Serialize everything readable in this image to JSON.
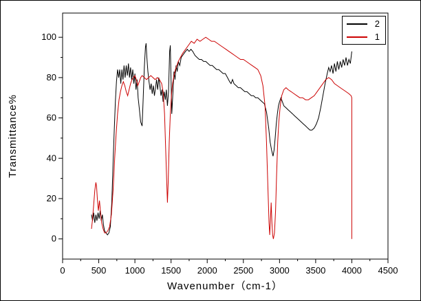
{
  "figure": {
    "background": "#ffffff",
    "border_color": "#000000"
  },
  "chart_data": {
    "type": "line",
    "title": "",
    "xlabel": "Wavenumber（cm-1）",
    "ylabel": "Transmittance%",
    "grid": false,
    "x_axis": {
      "min": 0,
      "max": 4500,
      "major_ticks": [
        0,
        500,
        1000,
        1500,
        2000,
        2500,
        3000,
        3500,
        4000,
        4500
      ],
      "minor_step": 250,
      "display_range": [
        0,
        4500
      ]
    },
    "y_axis": {
      "min": 0,
      "max": 100,
      "major_ticks": [
        0,
        20,
        40,
        60,
        80,
        100
      ],
      "minor_step": 10,
      "display_range": [
        -10,
        112
      ]
    },
    "legend": {
      "position": "top-right",
      "entries": [
        {
          "label": "2",
          "color": "#000000"
        },
        {
          "label": "1",
          "color": "#cc0000"
        }
      ]
    },
    "series": [
      {
        "name": "2",
        "color": "#000000",
        "points": [
          [
            400,
            12
          ],
          [
            415,
            9
          ],
          [
            430,
            13
          ],
          [
            445,
            8
          ],
          [
            460,
            12
          ],
          [
            475,
            9
          ],
          [
            490,
            13
          ],
          [
            505,
            10
          ],
          [
            520,
            14
          ],
          [
            535,
            9
          ],
          [
            550,
            12
          ],
          [
            565,
            7
          ],
          [
            580,
            4
          ],
          [
            600,
            3
          ],
          [
            620,
            2
          ],
          [
            640,
            3
          ],
          [
            660,
            6
          ],
          [
            680,
            18
          ],
          [
            700,
            40
          ],
          [
            715,
            55
          ],
          [
            730,
            68
          ],
          [
            745,
            78
          ],
          [
            760,
            84
          ],
          [
            775,
            80
          ],
          [
            790,
            84
          ],
          [
            805,
            77
          ],
          [
            820,
            84
          ],
          [
            835,
            79
          ],
          [
            850,
            86
          ],
          [
            865,
            80
          ],
          [
            880,
            86
          ],
          [
            895,
            81
          ],
          [
            910,
            87
          ],
          [
            925,
            80
          ],
          [
            940,
            85
          ],
          [
            955,
            79
          ],
          [
            970,
            84
          ],
          [
            985,
            77
          ],
          [
            1000,
            82
          ],
          [
            1015,
            74
          ],
          [
            1030,
            79
          ],
          [
            1045,
            70
          ],
          [
            1060,
            65
          ],
          [
            1080,
            58
          ],
          [
            1100,
            56
          ],
          [
            1115,
            70
          ],
          [
            1130,
            85
          ],
          [
            1145,
            95
          ],
          [
            1155,
            97
          ],
          [
            1165,
            90
          ],
          [
            1180,
            83
          ],
          [
            1195,
            78
          ],
          [
            1210,
            74
          ],
          [
            1225,
            77
          ],
          [
            1240,
            72
          ],
          [
            1255,
            76
          ],
          [
            1270,
            71
          ],
          [
            1285,
            75
          ],
          [
            1300,
            79
          ],
          [
            1315,
            74
          ],
          [
            1330,
            80
          ],
          [
            1345,
            76
          ],
          [
            1360,
            71
          ],
          [
            1375,
            74
          ],
          [
            1390,
            68
          ],
          [
            1405,
            73
          ],
          [
            1420,
            69
          ],
          [
            1435,
            74
          ],
          [
            1450,
            66
          ],
          [
            1465,
            73
          ],
          [
            1480,
            93
          ],
          [
            1490,
            96
          ],
          [
            1500,
            78
          ],
          [
            1510,
            62
          ],
          [
            1525,
            72
          ],
          [
            1540,
            83
          ],
          [
            1555,
            79
          ],
          [
            1570,
            86
          ],
          [
            1585,
            83
          ],
          [
            1600,
            88
          ],
          [
            1620,
            86
          ],
          [
            1640,
            90
          ],
          [
            1660,
            91
          ],
          [
            1680,
            92
          ],
          [
            1700,
            93
          ],
          [
            1725,
            94
          ],
          [
            1750,
            93
          ],
          [
            1775,
            94
          ],
          [
            1800,
            93
          ],
          [
            1830,
            91
          ],
          [
            1860,
            90
          ],
          [
            1890,
            89
          ],
          [
            1920,
            89
          ],
          [
            1950,
            88
          ],
          [
            1980,
            88
          ],
          [
            2010,
            87
          ],
          [
            2040,
            86
          ],
          [
            2070,
            86
          ],
          [
            2100,
            85
          ],
          [
            2130,
            84
          ],
          [
            2160,
            84
          ],
          [
            2190,
            83
          ],
          [
            2220,
            82
          ],
          [
            2250,
            82
          ],
          [
            2280,
            80
          ],
          [
            2310,
            78
          ],
          [
            2330,
            77
          ],
          [
            2350,
            79
          ],
          [
            2370,
            77
          ],
          [
            2400,
            76
          ],
          [
            2430,
            75
          ],
          [
            2460,
            75
          ],
          [
            2490,
            74
          ],
          [
            2520,
            73
          ],
          [
            2550,
            73
          ],
          [
            2580,
            72
          ],
          [
            2610,
            71
          ],
          [
            2640,
            71
          ],
          [
            2670,
            70
          ],
          [
            2700,
            70
          ],
          [
            2730,
            69
          ],
          [
            2760,
            68
          ],
          [
            2790,
            67
          ],
          [
            2820,
            63
          ],
          [
            2850,
            55
          ],
          [
            2870,
            48
          ],
          [
            2890,
            44
          ],
          [
            2910,
            41
          ],
          [
            2925,
            44
          ],
          [
            2940,
            50
          ],
          [
            2955,
            57
          ],
          [
            2970,
            62
          ],
          [
            2985,
            66
          ],
          [
            3000,
            68
          ],
          [
            3020,
            70
          ],
          [
            3040,
            68
          ],
          [
            3060,
            66
          ],
          [
            3090,
            65
          ],
          [
            3120,
            64
          ],
          [
            3150,
            63
          ],
          [
            3180,
            62
          ],
          [
            3210,
            61
          ],
          [
            3240,
            60
          ],
          [
            3270,
            59
          ],
          [
            3300,
            58
          ],
          [
            3330,
            57
          ],
          [
            3360,
            56
          ],
          [
            3390,
            55
          ],
          [
            3420,
            54
          ],
          [
            3450,
            54
          ],
          [
            3480,
            55
          ],
          [
            3510,
            57
          ],
          [
            3540,
            60
          ],
          [
            3570,
            65
          ],
          [
            3600,
            71
          ],
          [
            3630,
            77
          ],
          [
            3660,
            82
          ],
          [
            3680,
            85
          ],
          [
            3700,
            83
          ],
          [
            3720,
            86
          ],
          [
            3740,
            82
          ],
          [
            3760,
            87
          ],
          [
            3780,
            83
          ],
          [
            3800,
            88
          ],
          [
            3820,
            84
          ],
          [
            3840,
            88
          ],
          [
            3860,
            85
          ],
          [
            3880,
            89
          ],
          [
            3900,
            86
          ],
          [
            3920,
            90
          ],
          [
            3940,
            86
          ],
          [
            3960,
            89
          ],
          [
            3980,
            87
          ],
          [
            4000,
            93
          ]
        ]
      },
      {
        "name": "1",
        "color": "#cc0000",
        "points": [
          [
            400,
            5
          ],
          [
            415,
            10
          ],
          [
            430,
            17
          ],
          [
            445,
            24
          ],
          [
            460,
            28
          ],
          [
            470,
            26
          ],
          [
            480,
            20
          ],
          [
            495,
            14
          ],
          [
            510,
            19
          ],
          [
            525,
            13
          ],
          [
            540,
            8
          ],
          [
            560,
            5
          ],
          [
            580,
            3
          ],
          [
            600,
            3
          ],
          [
            625,
            4
          ],
          [
            650,
            6
          ],
          [
            675,
            12
          ],
          [
            700,
            25
          ],
          [
            720,
            40
          ],
          [
            740,
            52
          ],
          [
            760,
            62
          ],
          [
            780,
            69
          ],
          [
            800,
            73
          ],
          [
            820,
            76
          ],
          [
            840,
            78
          ],
          [
            860,
            76
          ],
          [
            880,
            73
          ],
          [
            900,
            71
          ],
          [
            920,
            74
          ],
          [
            940,
            77
          ],
          [
            960,
            79
          ],
          [
            980,
            80
          ],
          [
            1000,
            81
          ],
          [
            1020,
            79
          ],
          [
            1040,
            76
          ],
          [
            1060,
            78
          ],
          [
            1080,
            80
          ],
          [
            1100,
            81
          ],
          [
            1130,
            80
          ],
          [
            1160,
            79
          ],
          [
            1190,
            80
          ],
          [
            1220,
            81
          ],
          [
            1250,
            80
          ],
          [
            1280,
            79
          ],
          [
            1310,
            80
          ],
          [
            1340,
            79
          ],
          [
            1370,
            77
          ],
          [
            1390,
            73
          ],
          [
            1410,
            62
          ],
          [
            1425,
            45
          ],
          [
            1440,
            28
          ],
          [
            1450,
            18
          ],
          [
            1460,
            28
          ],
          [
            1475,
            48
          ],
          [
            1490,
            62
          ],
          [
            1505,
            71
          ],
          [
            1520,
            77
          ],
          [
            1540,
            81
          ],
          [
            1560,
            84
          ],
          [
            1580,
            86
          ],
          [
            1600,
            88
          ],
          [
            1630,
            90
          ],
          [
            1660,
            92
          ],
          [
            1700,
            94
          ],
          [
            1740,
            96
          ],
          [
            1780,
            98
          ],
          [
            1820,
            97
          ],
          [
            1860,
            99
          ],
          [
            1900,
            98
          ],
          [
            1940,
            99
          ],
          [
            1980,
            100
          ],
          [
            2020,
            99
          ],
          [
            2060,
            98
          ],
          [
            2100,
            98
          ],
          [
            2140,
            97
          ],
          [
            2180,
            96
          ],
          [
            2220,
            95
          ],
          [
            2260,
            94
          ],
          [
            2300,
            93
          ],
          [
            2340,
            92
          ],
          [
            2380,
            91
          ],
          [
            2420,
            90
          ],
          [
            2460,
            89
          ],
          [
            2500,
            89
          ],
          [
            2540,
            88
          ],
          [
            2580,
            87
          ],
          [
            2620,
            86
          ],
          [
            2660,
            85
          ],
          [
            2700,
            84
          ],
          [
            2740,
            81
          ],
          [
            2770,
            76
          ],
          [
            2800,
            66
          ],
          [
            2820,
            48
          ],
          [
            2840,
            25
          ],
          [
            2855,
            8
          ],
          [
            2865,
            2
          ],
          [
            2875,
            10
          ],
          [
            2885,
            18
          ],
          [
            2895,
            8
          ],
          [
            2905,
            2
          ],
          [
            2915,
            0
          ],
          [
            2930,
            3
          ],
          [
            2945,
            14
          ],
          [
            2960,
            32
          ],
          [
            2975,
            48
          ],
          [
            2990,
            58
          ],
          [
            3010,
            66
          ],
          [
            3030,
            71
          ],
          [
            3060,
            74
          ],
          [
            3090,
            75
          ],
          [
            3120,
            74
          ],
          [
            3160,
            73
          ],
          [
            3200,
            72
          ],
          [
            3240,
            71
          ],
          [
            3280,
            70
          ],
          [
            3320,
            70
          ],
          [
            3360,
            69
          ],
          [
            3400,
            69
          ],
          [
            3440,
            70
          ],
          [
            3480,
            71
          ],
          [
            3520,
            73
          ],
          [
            3560,
            75
          ],
          [
            3600,
            77
          ],
          [
            3640,
            79
          ],
          [
            3680,
            80
          ],
          [
            3720,
            79
          ],
          [
            3760,
            77
          ],
          [
            3800,
            76
          ],
          [
            3840,
            75
          ],
          [
            3880,
            74
          ],
          [
            3920,
            73
          ],
          [
            3960,
            72
          ],
          [
            3990,
            71
          ],
          [
            4000,
            70
          ],
          [
            4000,
            0
          ]
        ]
      }
    ]
  }
}
